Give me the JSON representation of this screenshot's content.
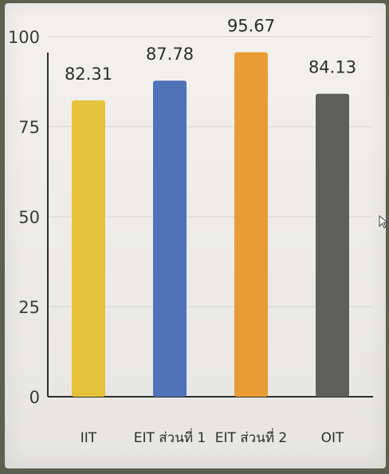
{
  "chart_data": {
    "type": "bar",
    "categories": [
      "IIT",
      "EIT ส่วนที่ 1",
      "EIT ส่วนที่ 2",
      "OIT"
    ],
    "values": [
      82.31,
      87.78,
      95.67,
      84.13
    ],
    "data_labels": [
      "82.31",
      "87.78",
      "95.67",
      "84.13"
    ],
    "colors": [
      "#e6c23a",
      "#4f72b8",
      "#e89c35",
      "#5e5e5c"
    ],
    "yticks": [
      "0",
      "25",
      "50",
      "75",
      "100"
    ],
    "ylim": [
      0,
      100
    ],
    "grid": true,
    "title": "",
    "xlabel": "",
    "ylabel": ""
  }
}
